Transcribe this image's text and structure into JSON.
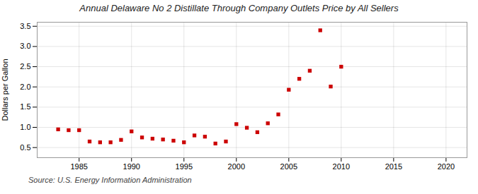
{
  "chart_data": {
    "type": "scatter",
    "title": "Annual Delaware No 2 Distillate Through Company Outlets Price by All Sellers",
    "ylabel": "Dollars per Gallon",
    "source": "Source: U.S. Energy Information Administration",
    "x": [
      1983,
      1984,
      1985,
      1986,
      1987,
      1988,
      1989,
      1990,
      1991,
      1992,
      1993,
      1994,
      1995,
      1996,
      1997,
      1998,
      1999,
      2000,
      2001,
      2002,
      2003,
      2004,
      2005,
      2006,
      2007,
      2008,
      2009,
      2010
    ],
    "values": [
      0.95,
      0.93,
      0.93,
      0.65,
      0.63,
      0.63,
      0.69,
      0.9,
      0.75,
      0.72,
      0.7,
      0.67,
      0.63,
      0.8,
      0.77,
      0.6,
      0.65,
      1.08,
      0.99,
      0.88,
      1.1,
      1.32,
      1.93,
      2.2,
      2.4,
      3.4,
      2.01,
      2.5
    ],
    "color": "#cc0000",
    "marker": "square",
    "xlim": [
      1981,
      2022
    ],
    "ylim": [
      0.25,
      3.6
    ],
    "xticks": [
      1985,
      1990,
      1995,
      2000,
      2005,
      2010,
      2015,
      2020
    ],
    "yticks": [
      0.5,
      {
        "value": 1.0,
        "label": "1.0"
      },
      1.5,
      {
        "value": 2.0,
        "label": "2.0"
      },
      2.5,
      {
        "value": 3.0,
        "label": "3.0"
      },
      3.5
    ],
    "grid": true
  }
}
